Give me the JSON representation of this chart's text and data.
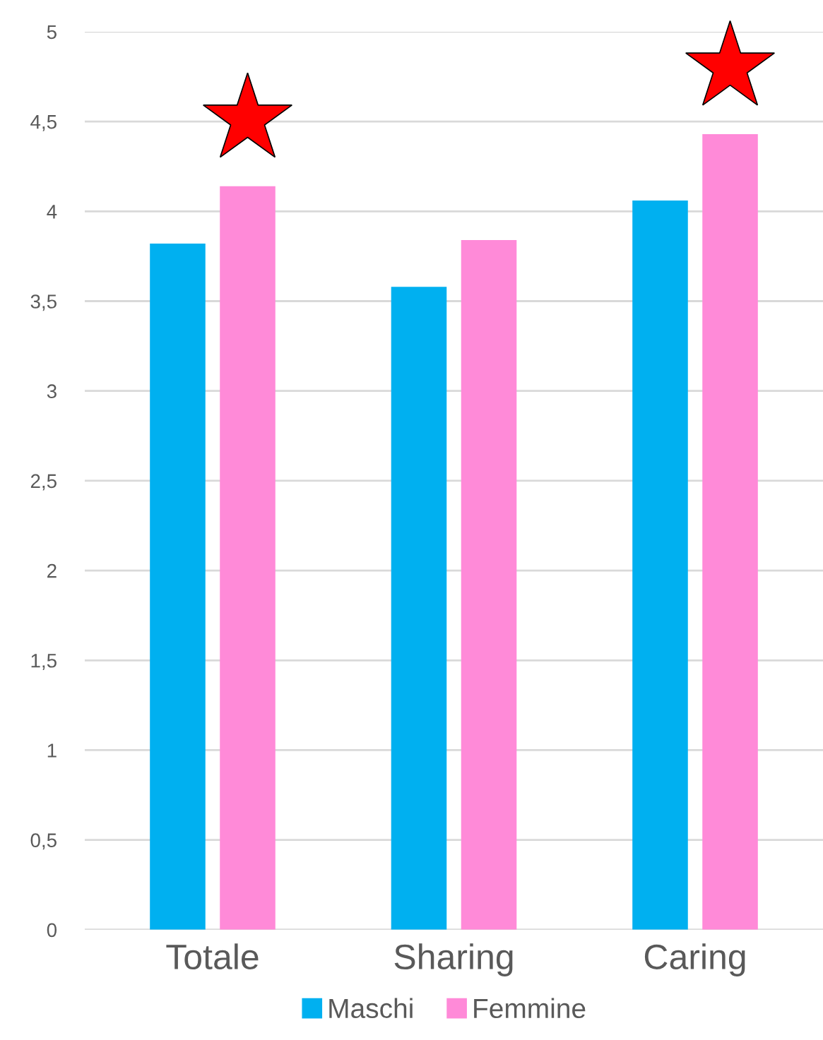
{
  "chart_data": {
    "type": "bar",
    "categories": [
      "Totale",
      "Sharing",
      "Caring"
    ],
    "series": [
      {
        "name": "Maschi",
        "color": "#00b0f0",
        "values": [
          3.82,
          3.58,
          4.06
        ]
      },
      {
        "name": "Femmine",
        "color": "#ff8ad8",
        "values": [
          4.14,
          3.84,
          4.43
        ]
      }
    ],
    "ylim": [
      0,
      5
    ],
    "yticks": [
      0,
      {
        "value": 0.5,
        "label": "0,5"
      },
      1,
      {
        "value": 1.5,
        "label": "1,5"
      },
      2,
      {
        "value": 2.5,
        "label": "2,5"
      },
      3,
      {
        "value": 3.5,
        "label": "3,5"
      },
      4,
      {
        "value": 4.5,
        "label": "4,5"
      },
      5
    ],
    "grid": "y",
    "legend": "bottom"
  }
}
